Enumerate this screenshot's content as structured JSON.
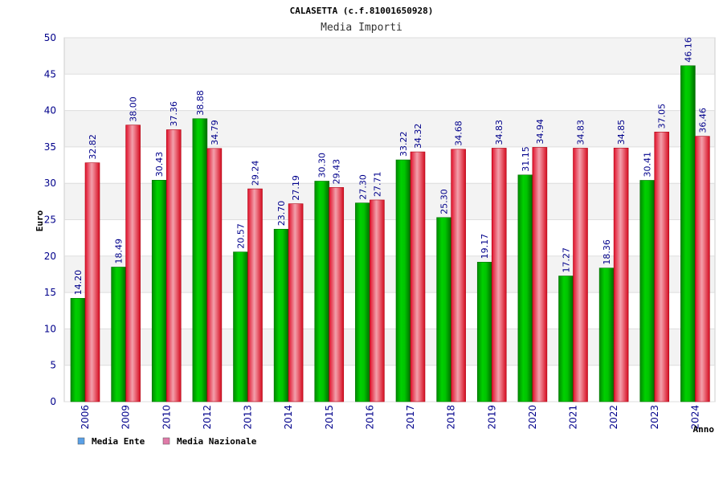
{
  "chart_data": {
    "type": "bar",
    "title": "CALASETTA (c.f.81001650928)",
    "subtitle": "Media Importi",
    "xlabel": "Anno",
    "ylabel": "Euro",
    "ylim": [
      0,
      50
    ],
    "yticks": [
      0,
      5,
      10,
      15,
      20,
      25,
      30,
      35,
      40,
      45,
      50
    ],
    "grid": true,
    "legend_position": "bottom-left",
    "categories": [
      "2006",
      "2009",
      "2010",
      "2012",
      "2013",
      "2014",
      "2015",
      "2016",
      "2017",
      "2018",
      "2019",
      "2020",
      "2021",
      "2022",
      "2023",
      "2024"
    ],
    "series": [
      {
        "name": "Media Ente",
        "color": "#00b000",
        "legend_color": "#5aa0e6",
        "values": [
          14.2,
          18.49,
          30.43,
          38.88,
          20.57,
          23.7,
          30.3,
          27.3,
          33.22,
          25.3,
          19.17,
          31.15,
          17.27,
          18.36,
          30.41,
          46.16
        ],
        "labels": [
          "14.20",
          "18.49",
          "30.43",
          "38.88",
          "20.57",
          "23.70",
          "30.30",
          "27.30",
          "33.22",
          "25.30",
          "19.17",
          "31.15",
          "17.27",
          "18.36",
          "30.41",
          "46.16"
        ]
      },
      {
        "name": "Media Nazionale",
        "color": "#e81c2c",
        "legend_color": "#e07aa8",
        "values": [
          32.82,
          38.0,
          37.36,
          34.79,
          29.24,
          27.19,
          29.43,
          27.71,
          34.32,
          34.68,
          34.83,
          34.94,
          34.83,
          34.85,
          37.05,
          36.46
        ],
        "labels": [
          "32.82",
          "38.00",
          "37.36",
          "34.79",
          "29.24",
          "27.19",
          "29.43",
          "27.71",
          "34.32",
          "34.68",
          "34.83",
          "34.94",
          "34.83",
          "34.85",
          "37.05",
          "36.46"
        ]
      }
    ]
  }
}
